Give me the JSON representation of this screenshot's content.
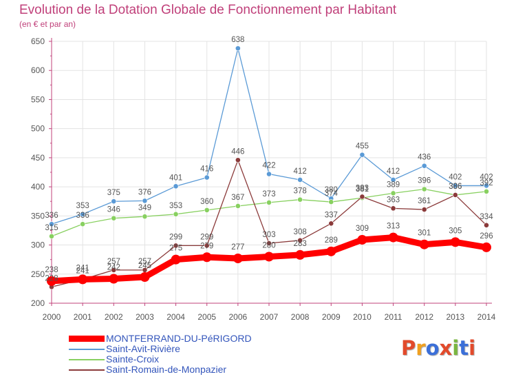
{
  "title": "Evolution de la Dotation Globale de Fonctionnement par Habitant",
  "subtitle": "(en € et par an)",
  "logo": {
    "text": "Proxiti",
    "letters": [
      "P",
      "r",
      "o",
      "x",
      "i",
      "t",
      "i"
    ],
    "colors": [
      "#e24a2b",
      "#f0a020",
      "#3b6fd8",
      "#e24a2b",
      "#7ab640",
      "#3b6fd8",
      "#e24a2b"
    ]
  },
  "chart_data": {
    "type": "line",
    "x": [
      2000,
      2001,
      2002,
      2003,
      2004,
      2005,
      2006,
      2007,
      2008,
      2009,
      2010,
      2011,
      2012,
      2013,
      2014
    ],
    "ylim": [
      200,
      650
    ],
    "yticks": [
      200,
      250,
      300,
      350,
      400,
      450,
      500,
      550,
      600,
      650
    ],
    "grid": true,
    "legend_position": "bottom-left",
    "series": [
      {
        "name": "MONTFERRAND-DU-PéRIGORD",
        "color": "#ff0000",
        "values": [
          238,
          241,
          242,
          245,
          275,
          279,
          277,
          280,
          283,
          289,
          309,
          313,
          301,
          305,
          296
        ],
        "labels": [
          "238",
          "241",
          "242",
          "245",
          "275",
          "279",
          "277",
          "280",
          "283",
          "289",
          "309",
          "313",
          "301",
          "305",
          "296"
        ]
      },
      {
        "name": "Saint-Avit-Rivière",
        "color": "#5a9ad6",
        "values": [
          336,
          353,
          375,
          376,
          401,
          416,
          638,
          422,
          412,
          380,
          455,
          412,
          436,
          402,
          402
        ],
        "labels": [
          "336",
          "353",
          "375",
          "376",
          "401",
          "416",
          "638",
          "422",
          "412",
          "380",
          "455",
          "412",
          "436",
          "402",
          "402"
        ]
      },
      {
        "name": "Sainte-Croix",
        "color": "#88d060",
        "values": [
          315,
          336,
          346,
          349,
          353,
          360,
          367,
          373,
          378,
          374,
          381,
          389,
          396,
          386,
          392
        ],
        "labels": [
          "315",
          "336",
          "346",
          "349",
          "353",
          "360",
          "367",
          "373",
          "378",
          "374",
          "381",
          "389",
          "396",
          "386",
          "392"
        ]
      },
      {
        "name": "Saint-Romain-de-Monpazier",
        "color": "#8b3a3a",
        "values": [
          228,
          241,
          257,
          257,
          299,
          299,
          446,
          303,
          308,
          337,
          383,
          363,
          361,
          386,
          334
        ],
        "labels": [
          "228",
          "241",
          "257",
          "257",
          "299",
          "299",
          "446",
          "303",
          "308",
          "337",
          "383",
          "363",
          "361",
          "386",
          "334"
        ]
      }
    ]
  }
}
